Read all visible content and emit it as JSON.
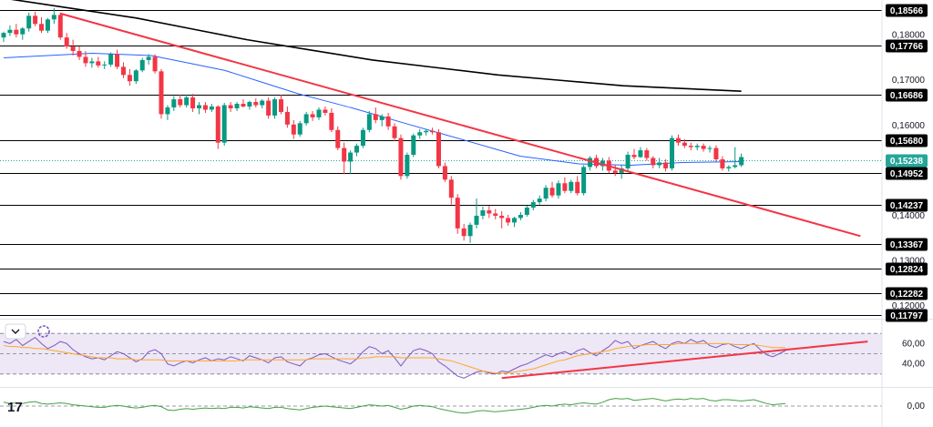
{
  "chart_data": {
    "type": "candlestick",
    "symbol_logo": "17",
    "colors": {
      "up": "#089981",
      "down": "#f23645",
      "level_line": "#000000",
      "ma_long": "#000000",
      "ma_short": "#2962ff",
      "trendline": "#f23645",
      "current_price_tag": "#26a69a",
      "rsi_line": "#7e57c2",
      "rsi_ma": "#ffa726",
      "rsi_band_fill": "#ede7f6",
      "momentum_line": "#43a047"
    },
    "price_axis": {
      "ylim": [
        0.1172,
        0.1878
      ],
      "tick_labels": [
        {
          "value": 0.18,
          "label": "0,18000"
        },
        {
          "value": 0.17,
          "label": "0,17000"
        },
        {
          "value": 0.16,
          "label": "0,16000"
        },
        {
          "value": 0.14,
          "label": "0,14000"
        },
        {
          "value": 0.13,
          "label": "0,13000"
        },
        {
          "value": 0.12,
          "label": "0,12000"
        }
      ]
    },
    "levels": [
      {
        "value": 0.18566,
        "label": "0,18566"
      },
      {
        "value": 0.17766,
        "label": "0,17766"
      },
      {
        "value": 0.16686,
        "label": "0,16686"
      },
      {
        "value": 0.1568,
        "label": "0,15680"
      },
      {
        "value": 0.14952,
        "label": "0,14952"
      },
      {
        "value": 0.14237,
        "label": "0,14237"
      },
      {
        "value": 0.13367,
        "label": "0,13367"
      },
      {
        "value": 0.12824,
        "label": "0,12824"
      },
      {
        "value": 0.12282,
        "label": "0,12282"
      },
      {
        "value": 0.11797,
        "label": "0,11797"
      }
    ],
    "current_price": {
      "value": 0.15238,
      "label": "0,15238"
    },
    "candles": [
      [
        0.1795,
        0.1808,
        0.1785,
        0.1805
      ],
      [
        0.1805,
        0.1822,
        0.1798,
        0.1812
      ],
      [
        0.1812,
        0.1825,
        0.1795,
        0.1802
      ],
      [
        0.1802,
        0.1818,
        0.179,
        0.1815
      ],
      [
        0.1815,
        0.185,
        0.1808,
        0.1843
      ],
      [
        0.1843,
        0.1852,
        0.182,
        0.1825
      ],
      [
        0.1825,
        0.184,
        0.1805,
        0.181
      ],
      [
        0.181,
        0.1838,
        0.1805,
        0.1835
      ],
      [
        0.1835,
        0.186,
        0.1825,
        0.1845
      ],
      [
        0.1845,
        0.185,
        0.179,
        0.1795
      ],
      [
        0.1795,
        0.1805,
        0.177,
        0.1775
      ],
      [
        0.1775,
        0.179,
        0.1755,
        0.1765
      ],
      [
        0.1765,
        0.1775,
        0.1745,
        0.1752
      ],
      [
        0.1752,
        0.1765,
        0.173,
        0.1738
      ],
      [
        0.1738,
        0.175,
        0.1728,
        0.1742
      ],
      [
        0.1742,
        0.1752,
        0.1728,
        0.1733
      ],
      [
        0.1733,
        0.1742,
        0.1725,
        0.1735
      ],
      [
        0.1735,
        0.1762,
        0.173,
        0.1758
      ],
      [
        0.1758,
        0.1768,
        0.1725,
        0.173
      ],
      [
        0.173,
        0.174,
        0.1705,
        0.1712
      ],
      [
        0.1712,
        0.1725,
        0.1688,
        0.1698
      ],
      [
        0.1698,
        0.1725,
        0.1692,
        0.1722
      ],
      [
        0.1722,
        0.175,
        0.1718,
        0.1745
      ],
      [
        0.1745,
        0.1758,
        0.1735,
        0.1752
      ],
      [
        0.1752,
        0.1758,
        0.1715,
        0.172
      ],
      [
        0.172,
        0.1725,
        0.1615,
        0.1625
      ],
      [
        0.1625,
        0.1645,
        0.1612,
        0.164
      ],
      [
        0.164,
        0.1665,
        0.1632,
        0.1658
      ],
      [
        0.1658,
        0.1668,
        0.164,
        0.1645
      ],
      [
        0.1645,
        0.1668,
        0.164,
        0.1662
      ],
      [
        0.1662,
        0.167,
        0.163,
        0.1638
      ],
      [
        0.1638,
        0.1652,
        0.1625,
        0.1645
      ],
      [
        0.1645,
        0.1652,
        0.1628,
        0.1635
      ],
      [
        0.1635,
        0.1648,
        0.163,
        0.1642
      ],
      [
        0.1642,
        0.1645,
        0.1548,
        0.1562
      ],
      [
        0.1562,
        0.165,
        0.1555,
        0.1645
      ],
      [
        0.1645,
        0.1652,
        0.163,
        0.1638
      ],
      [
        0.1638,
        0.1652,
        0.1632,
        0.1648
      ],
      [
        0.1648,
        0.1658,
        0.164,
        0.1642
      ],
      [
        0.1642,
        0.1655,
        0.1635,
        0.1652
      ],
      [
        0.1652,
        0.166,
        0.164,
        0.1645
      ],
      [
        0.1645,
        0.1658,
        0.1638,
        0.1655
      ],
      [
        0.1655,
        0.1662,
        0.1615,
        0.1622
      ],
      [
        0.1622,
        0.1662,
        0.1615,
        0.1658
      ],
      [
        0.1658,
        0.1668,
        0.1625,
        0.163
      ],
      [
        0.163,
        0.1642,
        0.1595,
        0.1602
      ],
      [
        0.1602,
        0.1612,
        0.157,
        0.158
      ],
      [
        0.158,
        0.161,
        0.1575,
        0.1605
      ],
      [
        0.1605,
        0.163,
        0.16,
        0.1625
      ],
      [
        0.1625,
        0.1632,
        0.161,
        0.1618
      ],
      [
        0.1618,
        0.164,
        0.1612,
        0.1635
      ],
      [
        0.1635,
        0.1642,
        0.1622,
        0.1628
      ],
      [
        0.1628,
        0.1638,
        0.1585,
        0.159
      ],
      [
        0.159,
        0.1598,
        0.1545,
        0.155
      ],
      [
        0.155,
        0.1562,
        0.1492,
        0.152
      ],
      [
        0.152,
        0.1545,
        0.1492,
        0.154
      ],
      [
        0.154,
        0.156,
        0.1532,
        0.1555
      ],
      [
        0.1555,
        0.1595,
        0.155,
        0.159
      ],
      [
        0.159,
        0.1632,
        0.1585,
        0.1625
      ],
      [
        0.1625,
        0.164,
        0.1605,
        0.1612
      ],
      [
        0.1612,
        0.1625,
        0.1598,
        0.162
      ],
      [
        0.162,
        0.1628,
        0.159,
        0.1598
      ],
      [
        0.1598,
        0.1605,
        0.1565,
        0.1572
      ],
      [
        0.1572,
        0.158,
        0.148,
        0.1488
      ],
      [
        0.1488,
        0.154,
        0.1482,
        0.1535
      ],
      [
        0.1535,
        0.1582,
        0.153,
        0.1578
      ],
      [
        0.1578,
        0.1592,
        0.157,
        0.1585
      ],
      [
        0.1585,
        0.1592,
        0.1578,
        0.1588
      ],
      [
        0.1588,
        0.1595,
        0.158,
        0.1585
      ],
      [
        0.1585,
        0.1592,
        0.1505,
        0.151
      ],
      [
        0.151,
        0.1518,
        0.1475,
        0.148
      ],
      [
        0.148,
        0.1488,
        0.1425,
        0.144
      ],
      [
        0.144,
        0.1448,
        0.136,
        0.1372
      ],
      [
        0.1372,
        0.1382,
        0.1345,
        0.1355
      ],
      [
        0.1355,
        0.1385,
        0.134,
        0.138
      ],
      [
        0.138,
        0.1438,
        0.1372,
        0.14
      ],
      [
        0.14,
        0.142,
        0.1392,
        0.1412
      ],
      [
        0.1412,
        0.1422,
        0.1395,
        0.1405
      ],
      [
        0.1405,
        0.1415,
        0.1392,
        0.14
      ],
      [
        0.14,
        0.141,
        0.1372,
        0.1395
      ],
      [
        0.1395,
        0.1402,
        0.1378,
        0.1385
      ],
      [
        0.1385,
        0.1398,
        0.1375,
        0.1395
      ],
      [
        0.1395,
        0.1408,
        0.139,
        0.1402
      ],
      [
        0.1402,
        0.1422,
        0.1398,
        0.1418
      ],
      [
        0.1418,
        0.1435,
        0.1412,
        0.143
      ],
      [
        0.143,
        0.1445,
        0.1425,
        0.1438
      ],
      [
        0.1438,
        0.1468,
        0.1432,
        0.1462
      ],
      [
        0.1462,
        0.1475,
        0.144,
        0.1445
      ],
      [
        0.1445,
        0.1478,
        0.1438,
        0.1472
      ],
      [
        0.1472,
        0.1485,
        0.145,
        0.1455
      ],
      [
        0.1455,
        0.148,
        0.145,
        0.1475
      ],
      [
        0.1475,
        0.1488,
        0.1445,
        0.145
      ],
      [
        0.145,
        0.1512,
        0.1445,
        0.1508
      ],
      [
        0.1508,
        0.1532,
        0.15,
        0.1528
      ],
      [
        0.1528,
        0.1535,
        0.1505,
        0.151
      ],
      [
        0.151,
        0.1528,
        0.15,
        0.1522
      ],
      [
        0.1522,
        0.153,
        0.1495,
        0.15
      ],
      [
        0.15,
        0.1512,
        0.1488,
        0.1495
      ],
      [
        0.1495,
        0.1512,
        0.1482,
        0.1505
      ],
      [
        0.1505,
        0.1542,
        0.15,
        0.1535
      ],
      [
        0.1535,
        0.1548,
        0.1525,
        0.153
      ],
      [
        0.153,
        0.1552,
        0.1528,
        0.1545
      ],
      [
        0.1545,
        0.155,
        0.1522,
        0.1528
      ],
      [
        0.1528,
        0.1532,
        0.1505,
        0.1512
      ],
      [
        0.1512,
        0.1528,
        0.1505,
        0.1518
      ],
      [
        0.1518,
        0.1525,
        0.1498,
        0.1505
      ],
      [
        0.1505,
        0.1578,
        0.15,
        0.1572
      ],
      [
        0.1572,
        0.158,
        0.1555,
        0.1562
      ],
      [
        0.1562,
        0.157,
        0.155,
        0.1555
      ],
      [
        0.1555,
        0.1562,
        0.1545,
        0.1552
      ],
      [
        0.1552,
        0.156,
        0.1545,
        0.1555
      ],
      [
        0.1555,
        0.156,
        0.1542,
        0.1548
      ],
      [
        0.1548,
        0.1555,
        0.154,
        0.155
      ],
      [
        0.155,
        0.1556,
        0.152,
        0.1525
      ],
      [
        0.1525,
        0.1532,
        0.15,
        0.1505
      ],
      [
        0.1505,
        0.1512,
        0.1498,
        0.1508
      ],
      [
        0.1508,
        0.1552,
        0.1505,
        0.1512
      ],
      [
        0.1512,
        0.1538,
        0.1508,
        0.153
      ]
    ],
    "ma_long": [
      [
        0.1882,
        0
      ],
      [
        0.1838,
        18
      ],
      [
        0.179,
        33
      ],
      [
        0.1745,
        50
      ],
      [
        0.1712,
        67
      ],
      [
        0.1688,
        84
      ],
      [
        0.1676,
        100
      ]
    ],
    "ma_short": [
      [
        0.175,
        0
      ],
      [
        0.176,
        12
      ],
      [
        0.1755,
        20
      ],
      [
        0.1722,
        30
      ],
      [
        0.167,
        40
      ],
      [
        0.164,
        47
      ],
      [
        0.1602,
        55
      ],
      [
        0.1565,
        63
      ],
      [
        0.1532,
        70
      ],
      [
        0.1515,
        78
      ],
      [
        0.1512,
        85
      ],
      [
        0.1518,
        92
      ],
      [
        0.152,
        100
      ]
    ],
    "trendline_price": {
      "from": {
        "index": 9,
        "value": 0.1848
      },
      "to": {
        "index": 133,
        "value": 0.1365
      }
    },
    "rsi": {
      "axis_labels": [
        {
          "value": 60,
          "label": "60,00"
        },
        {
          "value": 40,
          "label": "40,00"
        }
      ],
      "band": [
        30,
        70
      ],
      "mid": 50,
      "ylim": [
        20,
        80
      ],
      "values": [
        62,
        60,
        64,
        58,
        62,
        66,
        60,
        55,
        58,
        62,
        60,
        54,
        50,
        47,
        45,
        46,
        44,
        48,
        52,
        50,
        46,
        42,
        45,
        52,
        54,
        50,
        40,
        38,
        41,
        43,
        41,
        44,
        46,
        43,
        45,
        44,
        47,
        45,
        43,
        48,
        46,
        44,
        41,
        46,
        47,
        42,
        40,
        38,
        44,
        46,
        49,
        50,
        47,
        44,
        42,
        40,
        45,
        52,
        57,
        55,
        50,
        53,
        46,
        38,
        46,
        53,
        55,
        53,
        50,
        42,
        38,
        33,
        28,
        26,
        29,
        32,
        33,
        31,
        30,
        33,
        32,
        35,
        38,
        40,
        43,
        46,
        49,
        47,
        50,
        52,
        49,
        53,
        55,
        51,
        48,
        53,
        57,
        63,
        60,
        62,
        55,
        58,
        60,
        62,
        58,
        55,
        60,
        62,
        60,
        64,
        61,
        63,
        58,
        56,
        59,
        60,
        57,
        55,
        58,
        60,
        54,
        49,
        47,
        50,
        53
      ],
      "ma_values": [
        58,
        57,
        57,
        56,
        56,
        55,
        55,
        54,
        53,
        52,
        51,
        50,
        49,
        48,
        47,
        46,
        46,
        46,
        45,
        45,
        45,
        44,
        44,
        44,
        44,
        44,
        43,
        43,
        43,
        43,
        43,
        43,
        43,
        43,
        43,
        43,
        43,
        43,
        44,
        44,
        44,
        44,
        44,
        44,
        44,
        44,
        44,
        44,
        44,
        45,
        45,
        45,
        45,
        45,
        45,
        45,
        45,
        46,
        46,
        47,
        47,
        47,
        47,
        46,
        46,
        46,
        46,
        46,
        46,
        45,
        44,
        43,
        41,
        39,
        37,
        35,
        33,
        32,
        31,
        31,
        31,
        32,
        33,
        34,
        35,
        37,
        39,
        41,
        43,
        44,
        46,
        48,
        49,
        50,
        51,
        52,
        53,
        55,
        56,
        57,
        58,
        58,
        59,
        59,
        59,
        59,
        59,
        60,
        60,
        60,
        60,
        60,
        60,
        60,
        60,
        60,
        59,
        59,
        59,
        59,
        58,
        57,
        56,
        56,
        56
      ],
      "trendline": {
        "from": {
          "index": 79,
          "value": 26
        },
        "to": {
          "index": 133,
          "value": 62
        }
      }
    },
    "momentum": {
      "axis_label": {
        "value": 0,
        "label": "0,00"
      },
      "ylim": [
        -1,
        1
      ],
      "values": [
        0.3,
        0.2,
        0.25,
        0.2,
        0.3,
        0.35,
        0.2,
        0.15,
        0.2,
        0.25,
        0.2,
        0.1,
        0.05,
        0.0,
        -0.05,
        -0.1,
        -0.1,
        0.0,
        0.05,
        0.0,
        -0.1,
        -0.15,
        -0.1,
        0.0,
        0.05,
        -0.05,
        -0.3,
        -0.35,
        -0.25,
        -0.2,
        -0.25,
        -0.2,
        -0.15,
        -0.2,
        -0.15,
        -0.2,
        -0.1,
        -0.1,
        -0.15,
        -0.05,
        -0.1,
        -0.15,
        -0.2,
        -0.1,
        -0.1,
        -0.2,
        -0.25,
        -0.3,
        -0.2,
        -0.1,
        -0.05,
        0.0,
        -0.05,
        -0.1,
        -0.15,
        -0.2,
        -0.1,
        0.0,
        0.1,
        0.05,
        0.0,
        0.05,
        -0.1,
        -0.25,
        -0.15,
        0.0,
        0.05,
        0.0,
        -0.05,
        -0.2,
        -0.3,
        -0.4,
        -0.5,
        -0.55,
        -0.5,
        -0.4,
        -0.35,
        -0.4,
        -0.45,
        -0.4,
        -0.35,
        -0.3,
        -0.25,
        -0.2,
        -0.1,
        0.0,
        0.05,
        0.0,
        0.1,
        0.15,
        0.1,
        0.2,
        0.25,
        0.2,
        0.15,
        0.3,
        0.5,
        0.6,
        0.55,
        0.6,
        0.45,
        0.5,
        0.55,
        0.6,
        0.5,
        0.4,
        0.5,
        0.55,
        0.5,
        0.6,
        0.55,
        0.6,
        0.45,
        0.4,
        0.5,
        0.5,
        0.45,
        0.4,
        0.45,
        0.5,
        0.35,
        0.2,
        0.1,
        0.15,
        0.2
      ]
    }
  }
}
